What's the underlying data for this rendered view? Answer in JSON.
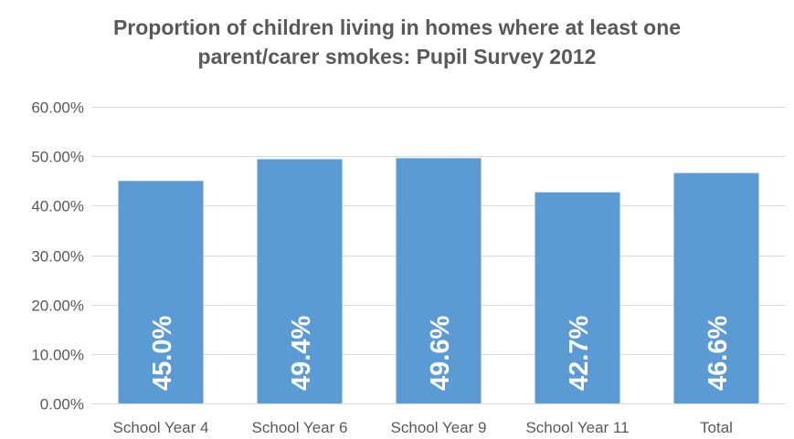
{
  "chart_data": {
    "type": "bar",
    "title_lines": [
      "Proportion of children living in homes where at least one",
      "parent/carer smokes: Pupil Survey 2012"
    ],
    "categories": [
      "School Year 4",
      "School Year 6",
      "School Year 9",
      "School Year 11",
      "Total"
    ],
    "values": [
      45.0,
      49.4,
      49.6,
      42.7,
      46.6
    ],
    "data_labels": [
      "45.0%",
      "49.4%",
      "49.6%",
      "42.7%",
      "46.6%"
    ],
    "y_ticks": [
      "0.00%",
      "10.00%",
      "20.00%",
      "30.00%",
      "40.00%",
      "50.00%",
      "60.00%"
    ],
    "ylim": [
      0,
      60
    ],
    "xlabel": "",
    "ylabel": "",
    "grid": true,
    "legend": "none",
    "bar_color": "#5b9bd5",
    "gridline_color": "#d9d9d9",
    "text_color": "#595959"
  }
}
